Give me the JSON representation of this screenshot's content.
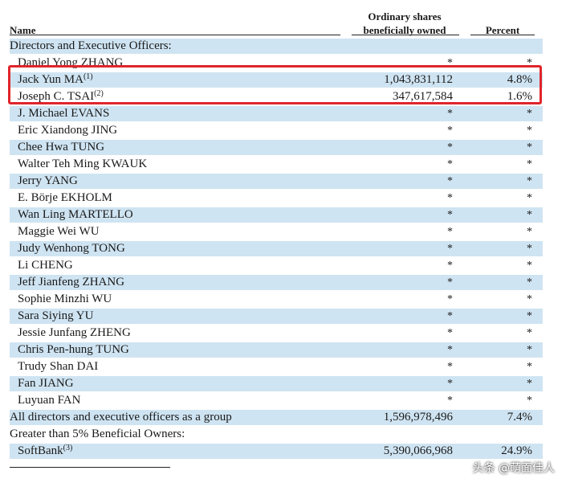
{
  "header": {
    "name": "Name",
    "shares_line1": "Ordinary shares",
    "shares_line2": "beneficially owned",
    "percent": "Percent"
  },
  "rows": [
    {
      "name": "Directors and Executive Officers:",
      "sup": "",
      "shares": "",
      "pct": "",
      "kind": "section",
      "shaded": true
    },
    {
      "name": "Daniel Yong ZHANG",
      "sup": "",
      "shares": "*",
      "pct": "*",
      "kind": "person",
      "shaded": false
    },
    {
      "name": "Jack Yun MA",
      "sup": "(1)",
      "shares": "1,043,831,112",
      "pct": "4.8%",
      "kind": "person",
      "shaded": true
    },
    {
      "name": "Joseph C. TSAI",
      "sup": "(2)",
      "shares": "347,617,584",
      "pct": "1.6%",
      "kind": "person",
      "shaded": false
    },
    {
      "name": "J. Michael EVANS",
      "sup": "",
      "shares": "*",
      "pct": "*",
      "kind": "person",
      "shaded": true
    },
    {
      "name": "Eric Xiandong JING",
      "sup": "",
      "shares": "*",
      "pct": "*",
      "kind": "person",
      "shaded": false
    },
    {
      "name": "Chee Hwa TUNG",
      "sup": "",
      "shares": "*",
      "pct": "*",
      "kind": "person",
      "shaded": true
    },
    {
      "name": "Walter Teh Ming KWAUK",
      "sup": "",
      "shares": "*",
      "pct": "*",
      "kind": "person",
      "shaded": false
    },
    {
      "name": "Jerry YANG",
      "sup": "",
      "shares": "*",
      "pct": "*",
      "kind": "person",
      "shaded": true
    },
    {
      "name": "E. Börje EKHOLM",
      "sup": "",
      "shares": "*",
      "pct": "*",
      "kind": "person",
      "shaded": false
    },
    {
      "name": "Wan Ling MARTELLO",
      "sup": "",
      "shares": "*",
      "pct": "*",
      "kind": "person",
      "shaded": true
    },
    {
      "name": "Maggie Wei WU",
      "sup": "",
      "shares": "*",
      "pct": "*",
      "kind": "person",
      "shaded": false
    },
    {
      "name": "Judy Wenhong TONG",
      "sup": "",
      "shares": "*",
      "pct": "*",
      "kind": "person",
      "shaded": true
    },
    {
      "name": "Li CHENG",
      "sup": "",
      "shares": "*",
      "pct": "*",
      "kind": "person",
      "shaded": false
    },
    {
      "name": "Jeff Jianfeng ZHANG",
      "sup": "",
      "shares": "*",
      "pct": "*",
      "kind": "person",
      "shaded": true
    },
    {
      "name": "Sophie Minzhi WU",
      "sup": "",
      "shares": "*",
      "pct": "*",
      "kind": "person",
      "shaded": false
    },
    {
      "name": "Sara Siying YU",
      "sup": "",
      "shares": "*",
      "pct": "*",
      "kind": "person",
      "shaded": true
    },
    {
      "name": "Jessie Junfang ZHENG",
      "sup": "",
      "shares": "*",
      "pct": "*",
      "kind": "person",
      "shaded": false
    },
    {
      "name": "Chris Pen-hung TUNG",
      "sup": "",
      "shares": "*",
      "pct": "*",
      "kind": "person",
      "shaded": true
    },
    {
      "name": "Trudy Shan DAI",
      "sup": "",
      "shares": "*",
      "pct": "*",
      "kind": "person",
      "shaded": false
    },
    {
      "name": "Fan JIANG",
      "sup": "",
      "shares": "*",
      "pct": "*",
      "kind": "person",
      "shaded": true
    },
    {
      "name": "Luyuan FAN",
      "sup": "",
      "shares": "*",
      "pct": "*",
      "kind": "person",
      "shaded": false
    },
    {
      "name": "All directors and executive officers as a group",
      "sup": "",
      "shares": "1,596,978,496",
      "pct": "7.4%",
      "kind": "group",
      "shaded": true
    },
    {
      "name": "Greater than 5% Beneficial Owners:",
      "sup": "",
      "shares": "",
      "pct": "",
      "kind": "section",
      "shaded": false
    },
    {
      "name": "SoftBank",
      "sup": "(3)",
      "shares": "5,390,066,968",
      "pct": "24.9%",
      "kind": "person",
      "shaded": true
    }
  ],
  "watermark": "头条 @萌面佳人",
  "colors": {
    "row_shade": "#cfe4f2",
    "highlight_border": "#e0252b"
  }
}
